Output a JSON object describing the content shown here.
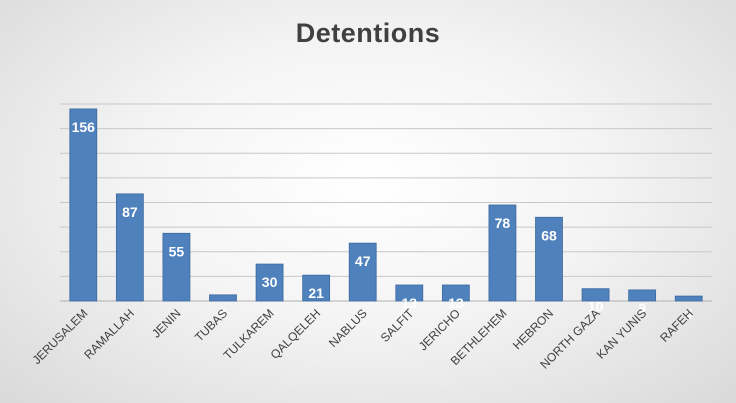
{
  "chart_data": {
    "type": "bar",
    "title": "Detentions",
    "categories": [
      "JERUSALEM",
      "RAMALLAH",
      "JENIN",
      "TUBAS",
      "TULKAREM",
      "QALQELEH",
      "NABLUS",
      "SALFIT",
      "JERICHO",
      "BETHLEHEM",
      "HEBRON",
      "NORTH GAZA",
      "KAN YUNIS",
      "RAFEH"
    ],
    "values": [
      156,
      87,
      55,
      5,
      30,
      21,
      47,
      13,
      13,
      78,
      68,
      10,
      9,
      4
    ],
    "ylim": [
      0,
      160
    ],
    "grid": true,
    "legend": "none",
    "colors": {
      "bar": "#4f81bd",
      "bar_edge": "#3e6a9f",
      "label": "#ffffff",
      "grid": "#c8c8c8",
      "axis_text": "#404040"
    }
  }
}
